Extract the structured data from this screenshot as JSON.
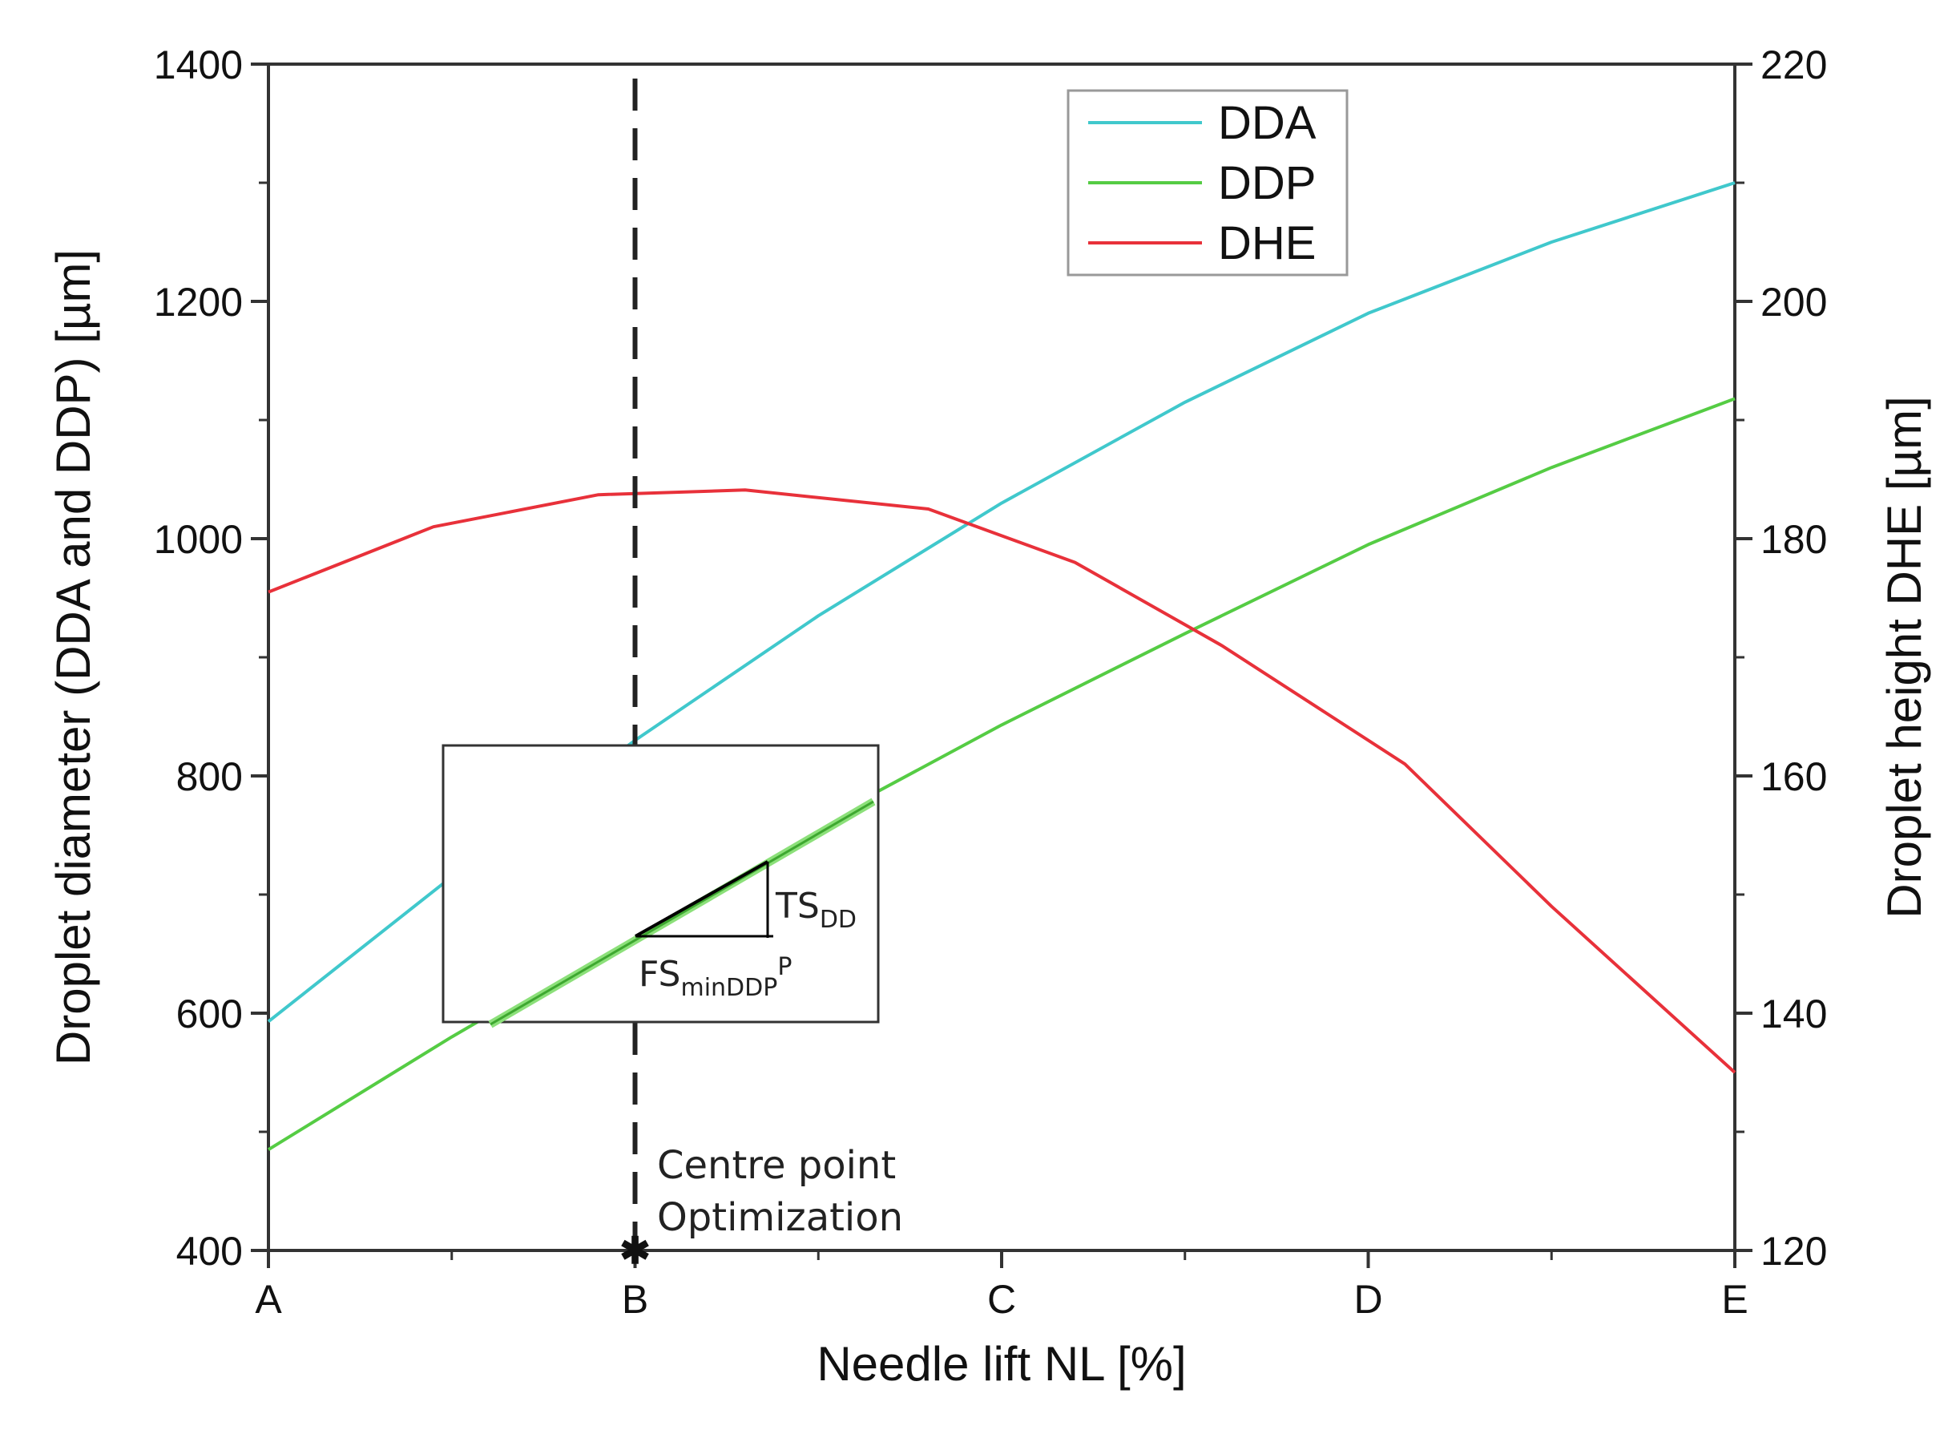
{
  "chart_data": {
    "type": "line",
    "title": "",
    "xlabel": "Needle lift NL [%]",
    "ylabel_left": "Droplet diameter (DDA and DDP) [µm]",
    "ylabel_right": "Droplet height DHE [µm]",
    "x_categories": [
      "A",
      "B",
      "C",
      "D",
      "E"
    ],
    "xlim": [
      0,
      4
    ],
    "ylim_left": [
      400,
      1400
    ],
    "ylim_right": [
      120,
      220
    ],
    "yticks_left": [
      400,
      600,
      800,
      1000,
      1200,
      1400
    ],
    "yticks_right": [
      120,
      140,
      160,
      180,
      200,
      220
    ],
    "legend_position": "top-right",
    "series": [
      {
        "name": "DDA",
        "axis": "left",
        "color": "#40c8cc",
        "x": [
          0,
          0.5,
          1,
          1.5,
          2,
          2.5,
          3,
          3.5,
          4
        ],
        "values": [
          593,
          715,
          830,
          935,
          1030,
          1115,
          1190,
          1250,
          1300
        ]
      },
      {
        "name": "DDP",
        "axis": "left",
        "color": "#55cc44",
        "x": [
          0,
          0.5,
          1,
          1.5,
          2,
          2.5,
          3,
          3.5,
          4
        ],
        "values": [
          485,
          580,
          670,
          760,
          843,
          920,
          995,
          1060,
          1118
        ]
      },
      {
        "name": "DHE",
        "axis": "right",
        "color": "#e8313a",
        "x": [
          0,
          0.45,
          0.9,
          1.3,
          1.8,
          2.2,
          2.6,
          3.1,
          3.5,
          4
        ],
        "values": [
          175.5,
          181,
          183.7,
          184.1,
          182.5,
          178,
          171,
          161,
          149,
          135
        ]
      }
    ],
    "annotations": {
      "centre_line_x": 1,
      "centre_label_line1": "Centre point",
      "centre_label_line2": "Optimization",
      "inset_label_ts": "TS",
      "inset_label_ts_sub": "DD",
      "inset_label_fs": "FS",
      "inset_label_fs_sub": "minDDP",
      "inset_label_fs_sup": "P"
    }
  }
}
